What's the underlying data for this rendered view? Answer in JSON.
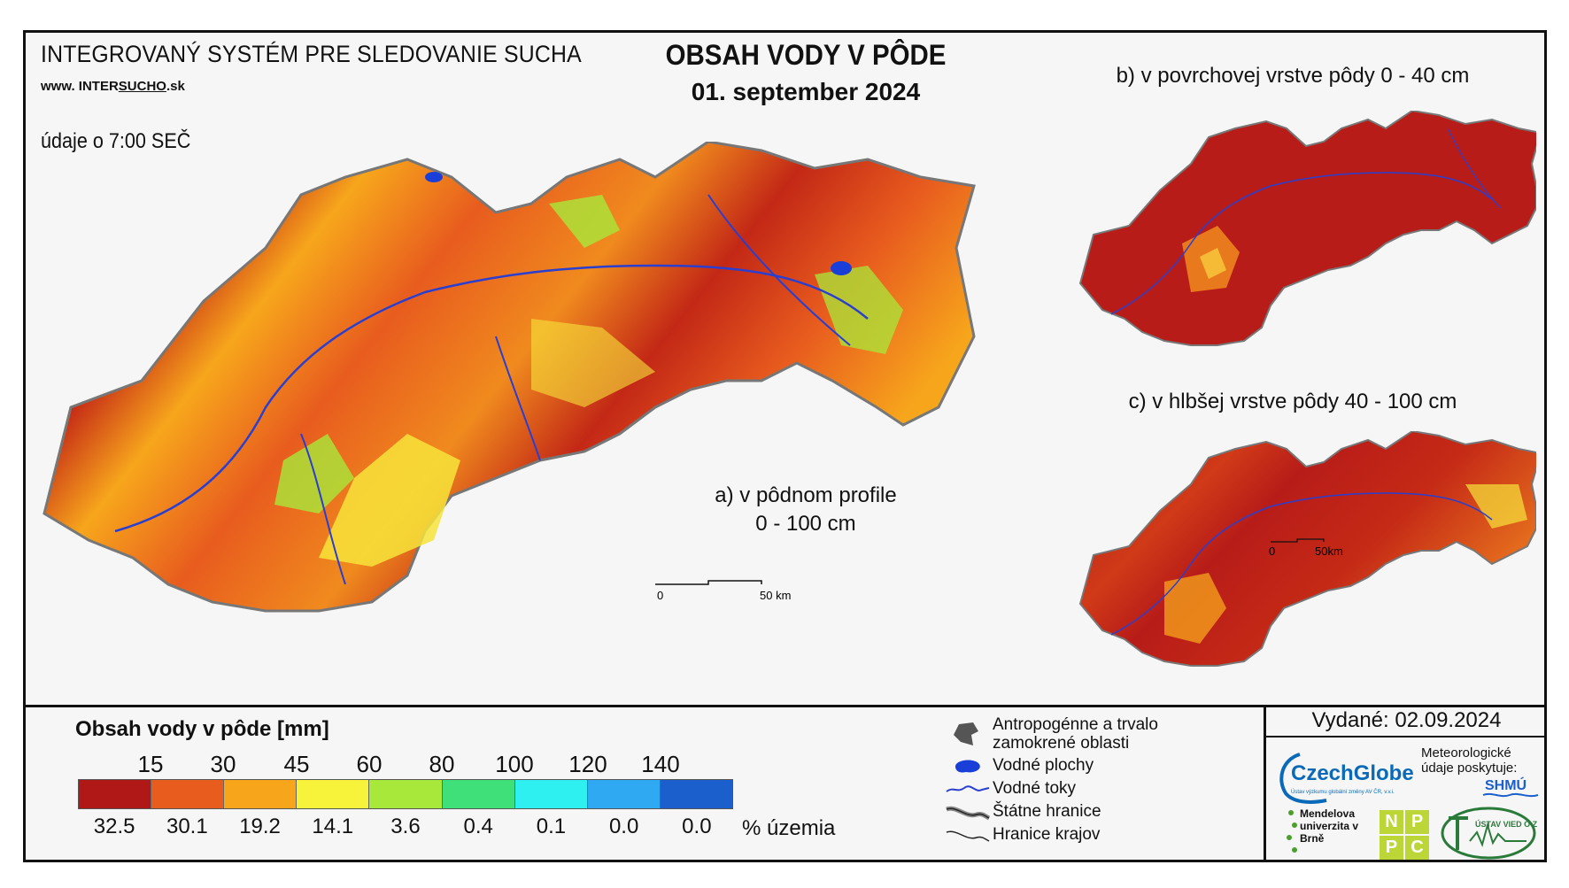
{
  "header": {
    "system_title": "INTEGROVANÝ SYSTÉM PRE SLEDOVANIE SUCHA",
    "url_prefix": "www. INTER",
    "url_mid": "SUCHO",
    "url_suffix": ".sk",
    "time_note": "údaje o 7:00 SEČ",
    "title": "OBSAH VODY V PÔDE",
    "date": "01. september 2024"
  },
  "maps": {
    "a_line1": "a) v pôdnom profile",
    "a_line2": "0 - 100 cm",
    "b_label": "b) v povrchovej vrstve pôdy 0 - 40 cm",
    "c_label": "c) v hlbšej vrstve pôdy 40 - 100 cm",
    "scale_main_start": "0",
    "scale_main_end": "50 km",
    "scale_small_start": "0",
    "scale_small_end": "50km"
  },
  "legend": {
    "title": "Obsah vody v pôde  [mm]",
    "thresholds": [
      "15",
      "30",
      "45",
      "60",
      "80",
      "100",
      "120",
      "140"
    ],
    "colors": [
      "#b01818",
      "#e85c1e",
      "#f7a61c",
      "#f7f23a",
      "#a8e83a",
      "#3fe07a",
      "#2ef0f0",
      "#2fa9f2",
      "#1a5fcc"
    ],
    "percentages": [
      "32.5",
      "30.1",
      "19.2",
      "14.1",
      "3.6",
      "0.4",
      "0.1",
      "0.0",
      "0.0"
    ],
    "percent_unit": "% územia"
  },
  "symbols": {
    "anthropogenic": "Antropogénne a trvalo zamokrené oblasti",
    "water_bodies": "Vodné plochy",
    "streams": "Vodné toky",
    "state_border": "Štátne hranice",
    "region_border": "Hranice krajov"
  },
  "footer": {
    "issued": "Vydané: 02.09.2024",
    "czechglobe": "CzechGlobe",
    "czechglobe_sub": "Ústav výzkumu globální změny AV ČR, v.v.i.",
    "meteo": "Meteorologické údaje poskytuje:",
    "shmu": "SHMÚ",
    "mendel": "Mendelova univerzita v Brně",
    "npc": [
      "N",
      "P",
      "P",
      "C"
    ],
    "uvz": "ÚSTAV VIED O ZEMI"
  }
}
